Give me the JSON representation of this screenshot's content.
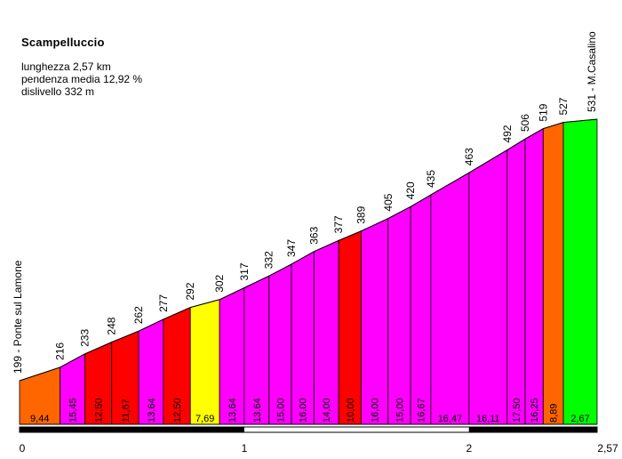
{
  "title": "Scampelluccio",
  "info": {
    "length": "lunghezza 2,57 km",
    "avg_gradient": "pendenza media 12,92 %",
    "elevation_gain": "dislivello 332 m"
  },
  "colors": {
    "orange": "#ff6600",
    "magenta": "#ff00ff",
    "red": "#ff0000",
    "yellow": "#ffff00",
    "green": "#00ff00",
    "scale_bar": "#000000"
  },
  "chart_data": {
    "type": "area",
    "title": "Scampelluccio",
    "x_unit": "km",
    "y_unit": "m",
    "xlim": [
      0,
      2.57
    ],
    "x_ticks": [
      {
        "value": 0,
        "label": "0"
      },
      {
        "value": 1,
        "label": "1"
      },
      {
        "value": 2,
        "label": "2"
      },
      {
        "value": 2.57,
        "label": "2,57"
      }
    ],
    "start_label": "199 - Ponte sul Lamone",
    "end_label": "531 - M.Casalino",
    "points": [
      {
        "km": 0.0,
        "alt": 199,
        "label": "199 - Ponte sul Lamone"
      },
      {
        "km": 0.18,
        "alt": 216,
        "label": "216"
      },
      {
        "km": 0.29,
        "alt": 233,
        "label": "233"
      },
      {
        "km": 0.41,
        "alt": 248,
        "label": "248"
      },
      {
        "km": 0.53,
        "alt": 262,
        "label": "262"
      },
      {
        "km": 0.64,
        "alt": 277,
        "label": "277"
      },
      {
        "km": 0.76,
        "alt": 292,
        "label": "292"
      },
      {
        "km": 0.89,
        "alt": 302,
        "label": "302"
      },
      {
        "km": 1.0,
        "alt": 317,
        "label": "317"
      },
      {
        "km": 1.11,
        "alt": 332,
        "label": "332"
      },
      {
        "km": 1.21,
        "alt": 347,
        "label": "347"
      },
      {
        "km": 1.31,
        "alt": 363,
        "label": "363"
      },
      {
        "km": 1.42,
        "alt": 377,
        "label": "377"
      },
      {
        "km": 1.52,
        "alt": 389,
        "label": "389"
      },
      {
        "km": 1.64,
        "alt": 405,
        "label": "405"
      },
      {
        "km": 1.74,
        "alt": 420,
        "label": "420"
      },
      {
        "km": 1.83,
        "alt": 435,
        "label": "435"
      },
      {
        "km": 2.0,
        "alt": 463,
        "label": "463"
      },
      {
        "km": 2.17,
        "alt": 492,
        "label": "492"
      },
      {
        "km": 2.25,
        "alt": 506,
        "label": "506"
      },
      {
        "km": 2.33,
        "alt": 519,
        "label": "519"
      },
      {
        "km": 2.42,
        "alt": 527,
        "label": "527"
      },
      {
        "km": 2.57,
        "alt": 531,
        "label": "531 - M.Casalino"
      }
    ],
    "segments": [
      {
        "gradient": "9,44",
        "color": "orange"
      },
      {
        "gradient": "15,45",
        "color": "magenta"
      },
      {
        "gradient": "12,50",
        "color": "red"
      },
      {
        "gradient": "11,67",
        "color": "red"
      },
      {
        "gradient": "13,64",
        "color": "magenta"
      },
      {
        "gradient": "12,50",
        "color": "red"
      },
      {
        "gradient": "7,69",
        "color": "yellow"
      },
      {
        "gradient": "13,64",
        "color": "magenta"
      },
      {
        "gradient": "13,64",
        "color": "magenta"
      },
      {
        "gradient": "15,00",
        "color": "magenta"
      },
      {
        "gradient": "16,00",
        "color": "magenta"
      },
      {
        "gradient": "14,00",
        "color": "magenta"
      },
      {
        "gradient": "10,00",
        "color": "red"
      },
      {
        "gradient": "16,00",
        "color": "magenta"
      },
      {
        "gradient": "15,00",
        "color": "magenta"
      },
      {
        "gradient": "16,67",
        "color": "magenta"
      },
      {
        "gradient": "16,47",
        "color": "magenta"
      },
      {
        "gradient": "16,11",
        "color": "magenta"
      },
      {
        "gradient": "17,50",
        "color": "magenta"
      },
      {
        "gradient": "16,25",
        "color": "magenta"
      },
      {
        "gradient": "8,89",
        "color": "orange"
      },
      {
        "gradient": "2,67",
        "color": "green"
      }
    ]
  }
}
